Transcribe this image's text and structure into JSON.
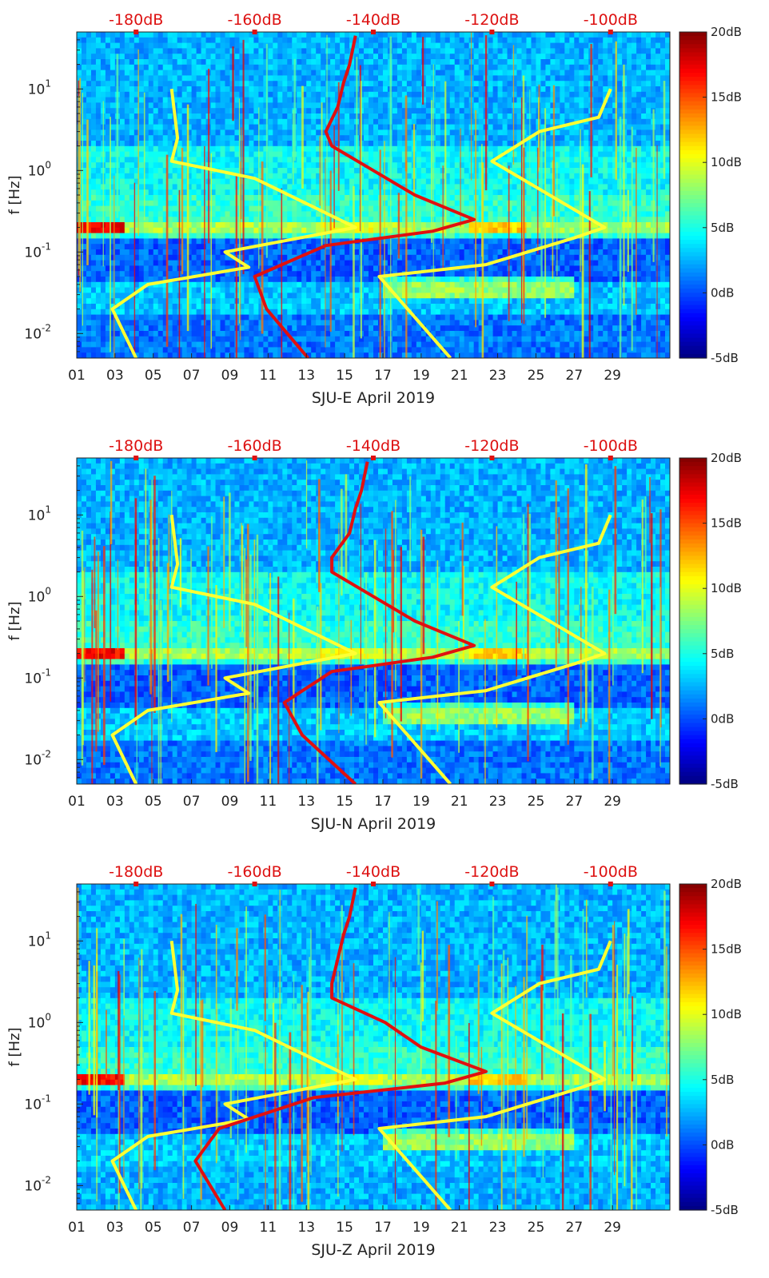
{
  "chart_data": [
    {
      "type": "heatmap",
      "xlabel": "SJU-E April 2019",
      "ylabel": "f [Hz]",
      "x_ticks": [
        "01",
        "03",
        "05",
        "07",
        "09",
        "11",
        "13",
        "15",
        "17",
        "19",
        "21",
        "23",
        "25",
        "27",
        "29"
      ],
      "y_ticks": [
        "10^-2",
        "10^-1",
        "10^0",
        "10^1"
      ],
      "top_axis_ticks": [
        "-180dB",
        "-160dB",
        "-140dB",
        "-120dB",
        "-100dB"
      ],
      "colorbar": {
        "ticks": [
          "20dB",
          "15dB",
          "10dB",
          "5dB",
          "0dB",
          "-5dB"
        ],
        "range": [
          -5,
          20
        ],
        "colormap": "jet"
      },
      "xlim": [
        1,
        32
      ],
      "ylim": [
        0.005,
        50
      ],
      "yscale": "log",
      "overlays": {
        "yellow_high": [
          [
            -174,
            10
          ],
          [
            -173,
            2.5
          ],
          [
            -174,
            1.3
          ],
          [
            -160,
            0.8
          ],
          [
            -143,
            0.2
          ],
          [
            -165,
            0.1
          ],
          [
            -161,
            0.065
          ],
          [
            -178,
            0.04
          ],
          [
            -184,
            0.02
          ],
          [
            -180,
            0.005
          ]
        ],
        "yellow_low": [
          [
            -100,
            10
          ],
          [
            -102,
            4.5
          ],
          [
            -112,
            3
          ],
          [
            -120,
            1.3
          ],
          [
            -101,
            0.2
          ],
          [
            -106,
            0.15
          ],
          [
            -121,
            0.07
          ],
          [
            -139,
            0.05
          ],
          [
            -127,
            0.005
          ]
        ],
        "red_mean": [
          [
            -143,
            45
          ],
          [
            -144,
            20
          ],
          [
            -145,
            12
          ],
          [
            -146,
            6
          ],
          [
            -148,
            3
          ],
          [
            -147,
            2
          ],
          [
            -140,
            1
          ],
          [
            -133,
            0.5
          ],
          [
            -123,
            0.25
          ],
          [
            -130,
            0.18
          ],
          [
            -148,
            0.12
          ],
          [
            -160,
            0.05
          ],
          [
            -158,
            0.02
          ],
          [
            -151,
            0.005
          ]
        ]
      }
    },
    {
      "type": "heatmap",
      "xlabel": "SJU-N April 2019",
      "ylabel": "f [Hz]",
      "x_ticks": [
        "01",
        "03",
        "05",
        "07",
        "09",
        "11",
        "13",
        "15",
        "17",
        "19",
        "21",
        "23",
        "25",
        "27",
        "29"
      ],
      "y_ticks": [
        "10^-2",
        "10^-1",
        "10^0",
        "10^1"
      ],
      "top_axis_ticks": [
        "-180dB",
        "-160dB",
        "-140dB",
        "-120dB",
        "-100dB"
      ],
      "colorbar": {
        "ticks": [
          "20dB",
          "15dB",
          "10dB",
          "5dB",
          "0dB",
          "-5dB"
        ],
        "range": [
          -5,
          20
        ],
        "colormap": "jet"
      },
      "xlim": [
        1,
        32
      ],
      "ylim": [
        0.005,
        50
      ],
      "yscale": "log",
      "overlays": {
        "yellow_high": [
          [
            -174,
            10
          ],
          [
            -173,
            2.5
          ],
          [
            -174,
            1.3
          ],
          [
            -160,
            0.8
          ],
          [
            -143,
            0.2
          ],
          [
            -165,
            0.1
          ],
          [
            -161,
            0.065
          ],
          [
            -178,
            0.04
          ],
          [
            -184,
            0.02
          ],
          [
            -180,
            0.005
          ]
        ],
        "yellow_low": [
          [
            -100,
            10
          ],
          [
            -102,
            4.5
          ],
          [
            -112,
            3
          ],
          [
            -120,
            1.3
          ],
          [
            -101,
            0.2
          ],
          [
            -106,
            0.15
          ],
          [
            -121,
            0.07
          ],
          [
            -139,
            0.05
          ],
          [
            -127,
            0.005
          ]
        ],
        "red_mean": [
          [
            -141,
            45
          ],
          [
            -142,
            20
          ],
          [
            -143,
            12
          ],
          [
            -144,
            6
          ],
          [
            -147,
            3
          ],
          [
            -147,
            2
          ],
          [
            -140,
            1
          ],
          [
            -133,
            0.5
          ],
          [
            -123,
            0.25
          ],
          [
            -130,
            0.18
          ],
          [
            -147,
            0.12
          ],
          [
            -155,
            0.05
          ],
          [
            -152,
            0.02
          ],
          [
            -143,
            0.005
          ]
        ]
      }
    },
    {
      "type": "heatmap",
      "xlabel": "SJU-Z April 2019",
      "ylabel": "f [Hz]",
      "x_ticks": [
        "01",
        "03",
        "05",
        "07",
        "09",
        "11",
        "13",
        "15",
        "17",
        "19",
        "21",
        "23",
        "25",
        "27",
        "29"
      ],
      "y_ticks": [
        "10^-2",
        "10^-1",
        "10^0",
        "10^1"
      ],
      "top_axis_ticks": [
        "-180dB",
        "-160dB",
        "-140dB",
        "-120dB",
        "-100dB"
      ],
      "colorbar": {
        "ticks": [
          "20dB",
          "15dB",
          "10dB",
          "5dB",
          "0dB",
          "-5dB"
        ],
        "range": [
          -5,
          20
        ],
        "colormap": "jet"
      },
      "xlim": [
        1,
        32
      ],
      "ylim": [
        0.005,
        50
      ],
      "yscale": "log",
      "overlays": {
        "yellow_high": [
          [
            -174,
            10
          ],
          [
            -173,
            2.5
          ],
          [
            -174,
            1.3
          ],
          [
            -160,
            0.8
          ],
          [
            -143,
            0.2
          ],
          [
            -165,
            0.1
          ],
          [
            -161,
            0.065
          ],
          [
            -178,
            0.04
          ],
          [
            -184,
            0.02
          ],
          [
            -180,
            0.005
          ]
        ],
        "yellow_low": [
          [
            -100,
            10
          ],
          [
            -102,
            4.5
          ],
          [
            -112,
            3
          ],
          [
            -120,
            1.3
          ],
          [
            -101,
            0.2
          ],
          [
            -106,
            0.15
          ],
          [
            -121,
            0.07
          ],
          [
            -139,
            0.05
          ],
          [
            -127,
            0.005
          ]
        ],
        "red_mean": [
          [
            -143,
            45
          ],
          [
            -144,
            20
          ],
          [
            -145,
            12
          ],
          [
            -146,
            6
          ],
          [
            -147,
            3
          ],
          [
            -147,
            2
          ],
          [
            -138,
            1
          ],
          [
            -132,
            0.5
          ],
          [
            -121,
            0.25
          ],
          [
            -128,
            0.18
          ],
          [
            -150,
            0.12
          ],
          [
            -166,
            0.05
          ],
          [
            -170,
            0.02
          ],
          [
            -165,
            0.005
          ]
        ]
      }
    }
  ]
}
